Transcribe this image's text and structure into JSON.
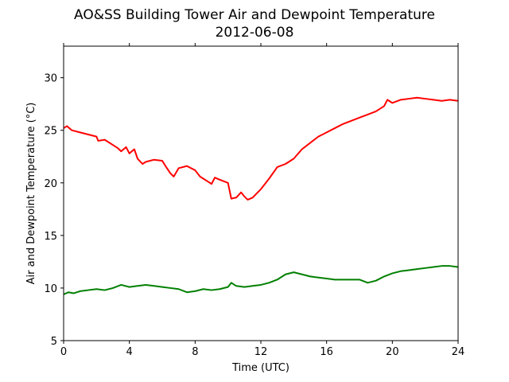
{
  "chart_data": {
    "type": "line",
    "title": "AO&SS Building Tower Air and Dewpoint Temperature",
    "subtitle": "2012-06-08",
    "xlabel": "Time (UTC)",
    "ylabel": "Air and Dewpoint Temperature (°C)",
    "xlim": [
      0,
      24
    ],
    "ylim": [
      5,
      33
    ],
    "xticks": [
      0,
      4,
      8,
      12,
      16,
      20,
      24
    ],
    "yticks": [
      5,
      10,
      15,
      20,
      25,
      30
    ],
    "grid": false,
    "series": [
      {
        "color": "#ff0000",
        "x": [
          0,
          0.2,
          0.5,
          1,
          1.5,
          2,
          2.1,
          2.5,
          3,
          3.3,
          3.5,
          3.8,
          4,
          4.3,
          4.5,
          4.8,
          5,
          5.5,
          6,
          6.2,
          6.5,
          6.7,
          7,
          7.5,
          8,
          8.3,
          8.5,
          8.8,
          9,
          9.2,
          9.5,
          10,
          10.2,
          10.5,
          10.8,
          11,
          11.2,
          11.5,
          12,
          12.5,
          13,
          13.5,
          14,
          14.5,
          15,
          15.5,
          16,
          16.5,
          17,
          17.5,
          18,
          18.5,
          19,
          19.5,
          19.7,
          20,
          20.5,
          21,
          21.5,
          22,
          22.5,
          23,
          23.5,
          24
        ],
        "y": [
          25.2,
          25.4,
          25.0,
          24.8,
          24.6,
          24.4,
          24.0,
          24.1,
          23.6,
          23.3,
          23.0,
          23.4,
          22.8,
          23.2,
          22.3,
          21.8,
          22.0,
          22.2,
          22.1,
          21.6,
          20.9,
          20.6,
          21.4,
          21.6,
          21.2,
          20.6,
          20.4,
          20.1,
          19.9,
          20.5,
          20.3,
          20.0,
          18.5,
          18.6,
          19.1,
          18.7,
          18.4,
          18.6,
          19.4,
          20.4,
          21.5,
          21.8,
          22.3,
          23.2,
          23.8,
          24.4,
          24.8,
          25.2,
          25.6,
          25.9,
          26.2,
          26.5,
          26.8,
          27.3,
          27.9,
          27.6,
          27.9,
          28.0,
          28.1,
          28.0,
          27.9,
          27.8,
          27.9,
          27.8
        ]
      },
      {
        "color": "#008000",
        "x": [
          0,
          0.3,
          0.6,
          1,
          1.5,
          2,
          2.5,
          3,
          3.5,
          4,
          4.5,
          5,
          5.5,
          6,
          6.5,
          7,
          7.5,
          8,
          8.5,
          9,
          9.5,
          10,
          10.2,
          10.5,
          11,
          11.5,
          12,
          12.5,
          13,
          13.5,
          14,
          14.5,
          15,
          15.5,
          16,
          16.5,
          17,
          17.5,
          18,
          18.5,
          19,
          19.5,
          20,
          20.5,
          21,
          21.5,
          22,
          22.5,
          23,
          23.5,
          24
        ],
        "y": [
          9.4,
          9.6,
          9.5,
          9.7,
          9.8,
          9.9,
          9.8,
          10.0,
          10.3,
          10.1,
          10.2,
          10.3,
          10.2,
          10.1,
          10.0,
          9.9,
          9.6,
          9.7,
          9.9,
          9.8,
          9.9,
          10.1,
          10.5,
          10.2,
          10.1,
          10.2,
          10.3,
          10.5,
          10.8,
          11.3,
          11.5,
          11.3,
          11.1,
          11.0,
          10.9,
          10.8,
          10.8,
          10.8,
          10.8,
          10.5,
          10.7,
          11.1,
          11.4,
          11.6,
          11.7,
          11.8,
          11.9,
          12.0,
          12.1,
          12.1,
          12.0
        ]
      }
    ]
  }
}
